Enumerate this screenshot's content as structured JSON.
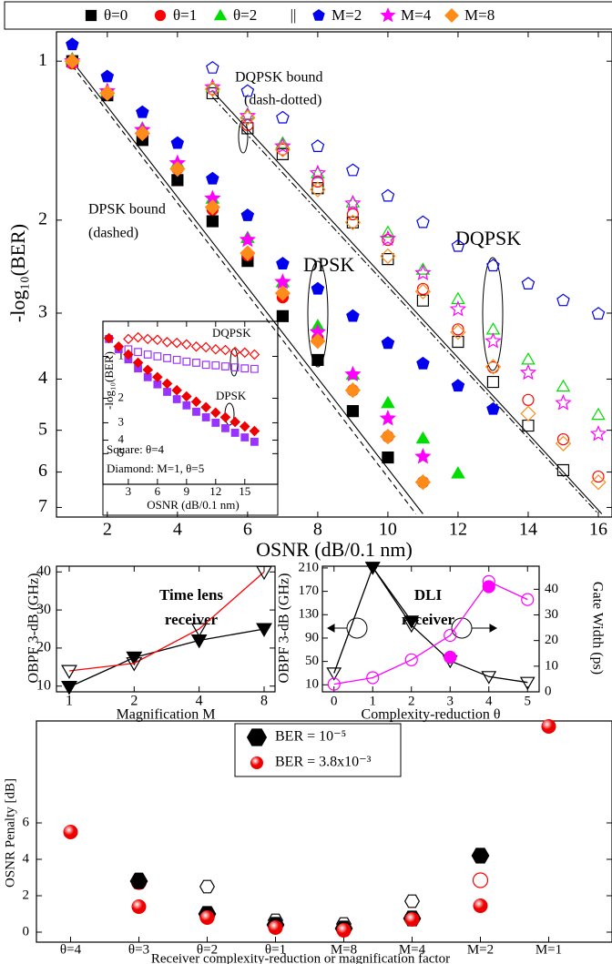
{
  "chart_data": [
    {
      "type": "scatter",
      "x_label": "OSNR (dB/0.1 nm)",
      "y_label": "-log₁₀(BER)",
      "xlim": [
        0.55,
        16.39
      ],
      "ylim": [
        0.88,
        7.3
      ],
      "y_scale": "log",
      "y_inverted": true,
      "xticks": [
        2,
        4,
        6,
        8,
        10,
        12,
        14,
        16
      ],
      "yticks": [
        1,
        2,
        3,
        4,
        5,
        6,
        7
      ],
      "legend_separator": "||",
      "series": [
        {
          "name": "θ=0",
          "color": "#000000",
          "marker": "square",
          "filled": true,
          "x": [
            1,
            2,
            3,
            4,
            5,
            6,
            7,
            8,
            9,
            10
          ],
          "values": [
            1.0,
            1.16,
            1.41,
            1.68,
            2.01,
            2.39,
            3.04,
            3.68,
            4.6,
            5.63
          ]
        },
        {
          "name": "θ=1",
          "color": "#ff0000",
          "marker": "circle",
          "filled": true,
          "x": [
            1,
            2,
            3,
            4,
            5,
            6,
            7,
            8,
            9,
            10,
            11
          ],
          "values": [
            1.01,
            1.15,
            1.37,
            1.6,
            1.91,
            2.33,
            2.8,
            3.35,
            4.2,
            5.14,
            6.27
          ]
        },
        {
          "name": "θ=2",
          "color": "#00dd00",
          "marker": "triangle",
          "filled": true,
          "x": [
            1,
            2,
            3,
            4,
            5,
            6,
            7,
            8,
            9,
            10,
            11,
            12
          ],
          "values": [
            0.99,
            1.14,
            1.34,
            1.56,
            1.82,
            2.16,
            2.62,
            3.17,
            3.92,
            4.44,
            5.18,
            6.03
          ]
        },
        {
          "name": "M=2",
          "color": "#0000ee",
          "marker": "pentagon",
          "filled": true,
          "x": [
            1,
            2,
            3,
            4,
            5,
            6,
            7,
            8,
            9,
            10,
            11,
            12,
            13
          ],
          "values": [
            0.93,
            1.07,
            1.25,
            1.43,
            1.67,
            1.96,
            2.42,
            2.7,
            3.04,
            3.42,
            3.74,
            4.12,
            4.56
          ]
        },
        {
          "name": "M=4",
          "color": "#ff00ff",
          "marker": "star",
          "filled": true,
          "x": [
            1,
            2,
            3,
            4,
            5,
            6,
            7,
            8,
            9,
            10,
            11
          ],
          "values": [
            1.0,
            1.14,
            1.35,
            1.56,
            1.82,
            2.18,
            2.62,
            3.26,
            3.92,
            4.75,
            5.61
          ]
        },
        {
          "name": "M=8",
          "color": "#ff8c1a",
          "marker": "diamond",
          "filled": true,
          "x": [
            1,
            2,
            3,
            4,
            5,
            6,
            7,
            8,
            9,
            10,
            11
          ],
          "values": [
            1.0,
            1.15,
            1.37,
            1.6,
            1.89,
            2.31,
            2.75,
            3.39,
            4.2,
            5.14,
            6.27
          ]
        },
        {
          "color": "#000000",
          "marker": "square",
          "filled": false,
          "x": [
            5,
            6,
            7,
            8,
            9,
            10,
            11,
            12,
            13,
            14,
            15
          ],
          "values": [
            1.15,
            1.34,
            1.5,
            1.74,
            2.02,
            2.37,
            2.84,
            3.4,
            4.05,
            4.9,
            5.95
          ]
        },
        {
          "color": "#ff0000",
          "marker": "circle",
          "filled": false,
          "x": [
            5,
            6,
            7,
            8,
            9,
            10,
            11,
            12,
            13,
            14,
            15,
            16
          ],
          "values": [
            1.13,
            1.32,
            1.47,
            1.69,
            1.95,
            2.18,
            2.7,
            3.22,
            3.8,
            4.38,
            5.2,
            6.12
          ]
        },
        {
          "color": "#00dd00",
          "marker": "triangle",
          "filled": false,
          "x": [
            5,
            6,
            7,
            8,
            9,
            10,
            11,
            12,
            13,
            14,
            15,
            16
          ],
          "values": [
            1.12,
            1.26,
            1.43,
            1.63,
            1.85,
            2.11,
            2.48,
            2.82,
            3.22,
            3.67,
            4.13,
            4.67
          ]
        },
        {
          "color": "#0000ee",
          "marker": "pentagon",
          "filled": false,
          "x": [
            5,
            6,
            7,
            8,
            9,
            10,
            11,
            12,
            13,
            14,
            15,
            16
          ],
          "values": [
            1.03,
            1.14,
            1.28,
            1.45,
            1.61,
            1.8,
            2.02,
            2.24,
            2.44,
            2.64,
            2.84,
            3.01
          ]
        },
        {
          "color": "#ff00ff",
          "marker": "star",
          "filled": false,
          "x": [
            5,
            6,
            7,
            8,
            9,
            10,
            11,
            12,
            13,
            14,
            15,
            16
          ],
          "values": [
            1.12,
            1.27,
            1.45,
            1.63,
            1.86,
            2.17,
            2.52,
            2.95,
            3.39,
            3.89,
            4.44,
            5.08
          ]
        },
        {
          "color": "#ff8c1a",
          "marker": "diamond",
          "filled": false,
          "x": [
            5,
            6,
            7,
            8,
            9,
            10,
            11,
            12,
            13,
            14,
            15,
            16
          ],
          "values": [
            1.13,
            1.28,
            1.47,
            1.75,
            2.02,
            2.34,
            2.73,
            3.26,
            3.79,
            4.65,
            5.3,
            6.27
          ]
        }
      ],
      "lines": [
        {
          "color": "#000000",
          "style": "solid",
          "x": [
            1,
            11
          ],
          "values": [
            1.0,
            7.2
          ]
        },
        {
          "color": "#000000",
          "style": "dashed",
          "x": [
            1,
            10.8
          ],
          "values": [
            1.02,
            7.2
          ]
        },
        {
          "color": "#000000",
          "style": "solid",
          "x": [
            5,
            16.1
          ],
          "values": [
            1.14,
            7.2
          ]
        },
        {
          "color": "#000000",
          "style": "dashdot",
          "x": [
            5,
            16
          ],
          "values": [
            1.17,
            7.2
          ]
        }
      ],
      "annotations": [
        "DQPSK bound",
        "(dash-dotted)",
        "DPSK bound",
        "(dashed)",
        "DPSK",
        "DQPSK"
      ]
    },
    {
      "type": "scatter",
      "x_label": "OSNR (dB/0.1 nm)",
      "y_label": "-log₁₀(BER)",
      "xlim": [
        0.38,
        18.4
      ],
      "ylim": [
        0.56,
        8.3
      ],
      "y_scale": "log",
      "y_inverted": true,
      "xticks": [
        3,
        6,
        9,
        12,
        15
      ],
      "yticks": [
        1,
        2,
        3,
        4,
        5
      ],
      "series": [
        {
          "color": "#ff0000",
          "marker": "diamond",
          "filled": false,
          "x": [
            3,
            4,
            5,
            6,
            7,
            8,
            9,
            10,
            11,
            12,
            13,
            14,
            15,
            16
          ],
          "values": [
            0.75,
            0.73,
            0.75,
            0.76,
            0.79,
            0.8,
            0.82,
            0.85,
            0.86,
            0.89,
            0.9,
            0.93,
            0.94,
            0.97
          ]
        },
        {
          "color": "#9933ff",
          "marker": "square",
          "filled": false,
          "x": [
            3,
            4,
            5,
            6,
            7,
            8,
            9,
            10,
            11,
            12,
            13,
            14,
            15,
            16
          ],
          "values": [
            0.89,
            0.93,
            0.97,
            1.0,
            1.03,
            1.06,
            1.09,
            1.11,
            1.15,
            1.16,
            1.18,
            1.2,
            1.22,
            1.23
          ]
        },
        {
          "color": "#9933ff",
          "marker": "square",
          "filled": true,
          "x": [
            1,
            2,
            3,
            4,
            5,
            6,
            7,
            8,
            9,
            10,
            11,
            12,
            13,
            14,
            15,
            16
          ],
          "values": [
            0.75,
            0.89,
            1.05,
            1.22,
            1.41,
            1.59,
            1.8,
            2.03,
            2.25,
            2.5,
            2.74,
            3.0,
            3.28,
            3.54,
            3.82,
            4.11
          ]
        },
        {
          "color": "#ee0000",
          "marker": "diamond",
          "filled": true,
          "x": [
            1,
            2,
            3,
            4,
            5,
            6,
            7,
            8,
            9,
            10,
            11,
            12,
            13,
            14,
            15,
            16
          ],
          "values": [
            0.74,
            0.85,
            0.97,
            1.11,
            1.25,
            1.41,
            1.57,
            1.75,
            1.94,
            2.12,
            2.32,
            2.54,
            2.74,
            2.96,
            3.19,
            3.44
          ]
        }
      ],
      "annotations": [
        "DQPSK",
        "DPSK",
        "Square: θ=4",
        "Diamond: M=1, θ=5"
      ]
    },
    {
      "type": "line",
      "title_lines": [
        "Time lens",
        "receiver"
      ],
      "x_label": "Magnification M",
      "y_label": "OBPF 3-dB (GHz)",
      "x_scale": "log2",
      "xlim": [
        0.873,
        8.99
      ],
      "ylim": [
        8.5,
        41.5
      ],
      "xticks": [
        1,
        2,
        4,
        8
      ],
      "yticks": [
        10,
        20,
        30,
        40
      ],
      "series": [
        {
          "color": "#000000",
          "line_color": "#000000",
          "marker": "triangle-down",
          "filled": true,
          "connected": true,
          "x": [
            1,
            2,
            4,
            8
          ],
          "values": [
            9.8,
            17.5,
            22,
            25
          ]
        },
        {
          "color": "#000000",
          "line_color": "#ff0000",
          "marker": "triangle-down",
          "filled": false,
          "connected": true,
          "x": [
            1,
            2,
            4,
            8
          ],
          "values": [
            14,
            16,
            25,
            40
          ]
        }
      ]
    },
    {
      "type": "line",
      "title_lines": [
        "DLI",
        "receiver"
      ],
      "x_label": "Complexity-reduction θ",
      "y_label": "OBPF 3-dB (GHz)",
      "y2_label": "Gate Width (ps)",
      "xlim": [
        -0.3,
        5.3
      ],
      "ylim": [
        -2,
        213
      ],
      "y2lim": [
        0,
        49
      ],
      "xticks": [
        0,
        1,
        2,
        3,
        4,
        5
      ],
      "yticks": [
        10,
        50,
        90,
        130,
        170,
        210
      ],
      "y2ticks": [
        0,
        10,
        20,
        30,
        40
      ],
      "series": [
        {
          "color": "#000000",
          "line_color": "#000000",
          "marker": "triangle-down",
          "filled": false,
          "connected": true,
          "x": [
            0,
            1,
            2,
            3,
            4,
            5
          ],
          "values": [
            30,
            211,
            112,
            51,
            24,
            14
          ]
        },
        {
          "color": "#000000",
          "line_color": "#000000",
          "marker": "triangle-down",
          "filled": true,
          "connected": true,
          "x": [
            1,
            2
          ],
          "values": [
            211,
            119
          ]
        },
        {
          "color": "#ff00ff",
          "line_color": "#ff00ff",
          "marker": "circle",
          "filled": false,
          "connected": true,
          "axis": "y2",
          "x": [
            0,
            1,
            2,
            3,
            4,
            5
          ],
          "values": [
            3,
            5.5,
            12.5,
            22,
            43,
            36
          ]
        },
        {
          "color": "#ff00ff",
          "marker": "circle",
          "filled": true,
          "connected": false,
          "axis": "y2",
          "x": [
            3,
            4
          ],
          "values": [
            13.5,
            41
          ]
        }
      ]
    },
    {
      "type": "scatter",
      "x_label": "Receiver complexity-reduction or magnification factor",
      "y_label": "OSNR Penalty [dB]",
      "categories": [
        "θ=4",
        "θ=3",
        "θ=2",
        "θ=1",
        "M=8",
        "M=4",
        "M=2",
        "M=1"
      ],
      "ylim": [
        -0.55,
        11.6
      ],
      "yticks": [
        0,
        2,
        4,
        6
      ],
      "legend": "top-center",
      "series": [
        {
          "color": "#000000",
          "marker": "hexagon",
          "filled": false,
          "values": [
            null,
            2.9,
            2.5,
            0.65,
            0.45,
            1.7,
            4.2,
            null
          ]
        },
        {
          "color": "#ff0000",
          "marker": "circle",
          "filled": false,
          "values": [
            null,
            2.75,
            0.9,
            0.4,
            0.2,
            0.75,
            2.85,
            null
          ]
        },
        {
          "name": "BER = 10⁻⁵",
          "color": "#000000",
          "marker": "hexagon",
          "filled": true,
          "values": [
            null,
            2.8,
            1.0,
            0.4,
            0.2,
            0.75,
            4.2,
            null
          ]
        },
        {
          "name": "BER = 3.8x10⁻³",
          "color": "#ee0000",
          "marker": "sphere",
          "filled": true,
          "values": [
            5.5,
            1.4,
            0.8,
            0.25,
            0.1,
            0.7,
            1.45,
            11.3
          ]
        }
      ]
    }
  ]
}
